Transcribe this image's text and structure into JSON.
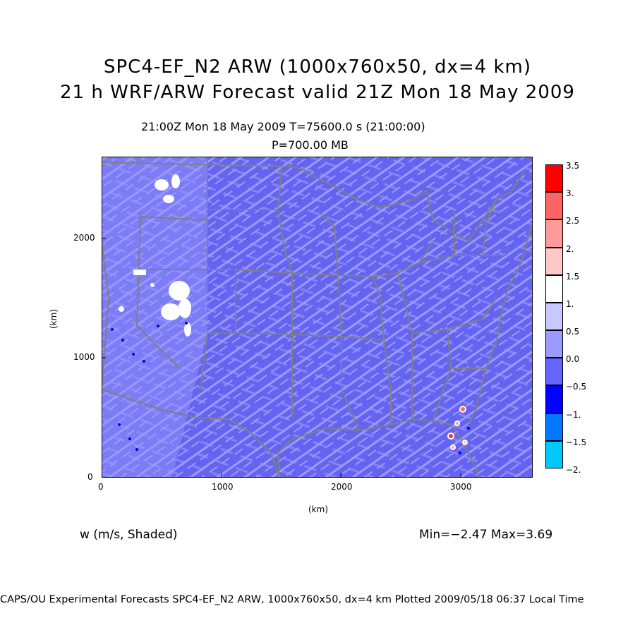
{
  "header": {
    "title_line1": "SPC4-EF_N2 ARW (1000x760x50, dx=4 km)",
    "title_line2": "21 h WRF/ARW Forecast valid 21Z Mon 18 May 2009",
    "valid_time": "21:00Z Mon 18 May 2009    T=75600.0 s (21:00:00)",
    "level": "P=700.00 MB"
  },
  "axes": {
    "x_label": "(km)",
    "y_label": "(km)",
    "x_ticks": [
      "0",
      "1000",
      "2000",
      "3000"
    ],
    "y_ticks": [
      "0",
      "1000",
      "2000"
    ],
    "x_range_km": [
      0,
      3600
    ],
    "y_range_km": [
      0,
      2700
    ]
  },
  "colorbar": {
    "labels": [
      "3.5",
      "3.",
      "2.5",
      "2.",
      "1.5",
      "1.",
      "0.5",
      "0.0",
      "−0.5",
      "−1.",
      "−1.5",
      "−2."
    ],
    "colors": [
      "#ff0000",
      "#ff6464",
      "#ff9a9a",
      "#ffc8c8",
      "#ffffff",
      "#c8c8ff",
      "#9a9aff",
      "#6464ff",
      "#0000ff",
      "#0078ff",
      "#00c8ff",
      "#00ffff"
    ]
  },
  "field": {
    "variable_label": "w (m/s, Shaded)",
    "min_max": "Min=−2.47 Max=3.69",
    "background_color": "#6464f0",
    "streak_color": "#9a9aff",
    "boundary_color": "#808080"
  },
  "footer": {
    "text": "CAPS/OU Experimental Forecasts  SPC4-EF_N2 ARW, 1000x760x50, dx=4 km  Plotted 2009/05/18 06:37 Local Time"
  }
}
